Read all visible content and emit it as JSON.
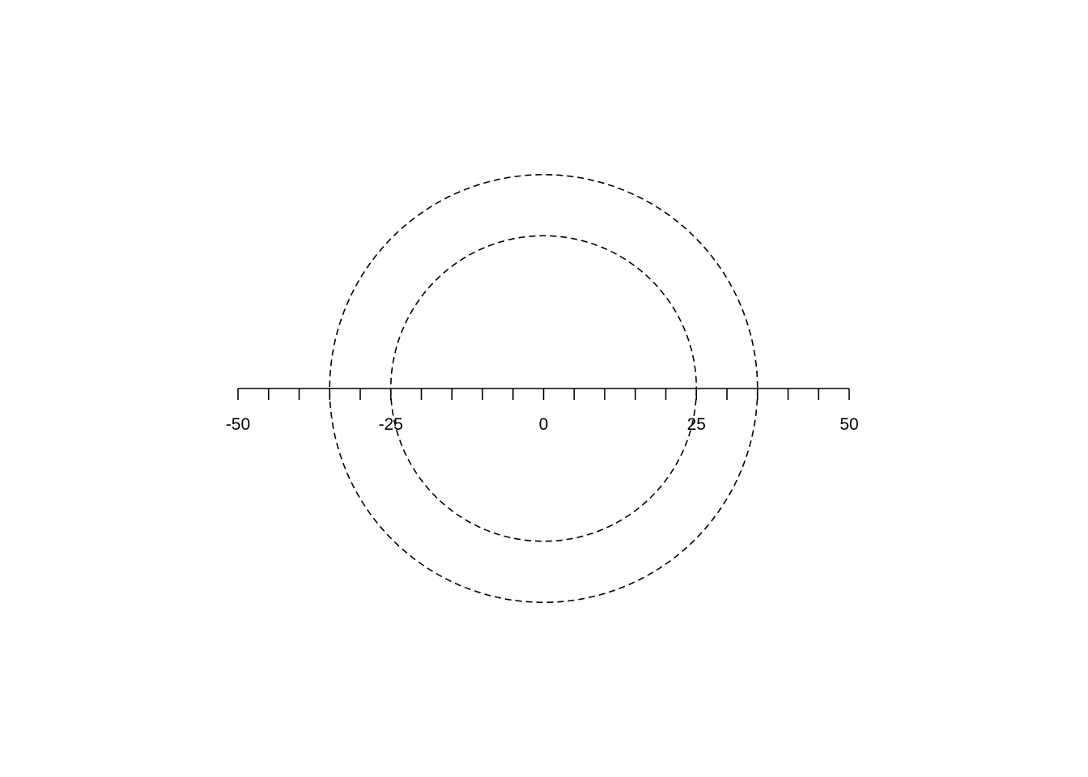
{
  "chart_data": {
    "type": "scatter",
    "title": "",
    "xlabel": "",
    "ylabel": "",
    "xlim": [
      -50,
      50
    ],
    "axis": {
      "major_ticks": [
        -50,
        -25,
        0,
        25,
        50
      ],
      "major_tick_labels": [
        "-50",
        "-25",
        "0",
        "25",
        "50"
      ],
      "minor_ticks": [
        -45,
        -40,
        -35,
        -30,
        -20,
        -15,
        -10,
        -5,
        5,
        10,
        15,
        20,
        30,
        35,
        40,
        45
      ]
    },
    "circles": [
      {
        "center": [
          0,
          0
        ],
        "radius": 25,
        "line_style": "dashed",
        "color": "#000000"
      },
      {
        "center": [
          0,
          0
        ],
        "radius": 35,
        "line_style": "dashed",
        "color": "#000000"
      }
    ],
    "grid": false,
    "legend": "none"
  }
}
